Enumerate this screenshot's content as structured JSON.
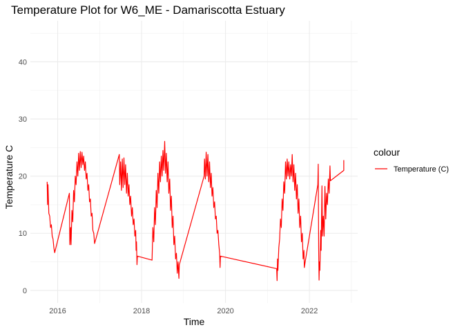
{
  "chart_data": {
    "type": "line",
    "title": "Temperature Plot for W6_ME - Damariscotta Estuary",
    "xlabel": "Time",
    "ylabel": "Temperature C",
    "xlim": [
      2015.35,
      2023.15
    ],
    "ylim": [
      -2.2,
      47.2
    ],
    "x_ticks": [
      2016,
      2018,
      2020,
      2022
    ],
    "x_tick_labels": [
      "2016",
      "2018",
      "2020",
      "2022"
    ],
    "y_ticks": [
      0,
      10,
      20,
      30,
      40
    ],
    "y_tick_labels": [
      "0",
      "10",
      "20",
      "30",
      "40"
    ],
    "grid": true,
    "legend": {
      "title": "colour",
      "position": "right",
      "entries": [
        {
          "label": "Temperature (C)",
          "color": "#ff0000"
        }
      ]
    },
    "series": [
      {
        "name": "Temperature (C)",
        "color": "#ff0000",
        "points": [
          [
            2015.75,
            19.0
          ],
          [
            2015.76,
            15.0
          ],
          [
            2015.77,
            18.5
          ],
          [
            2015.79,
            13.5
          ],
          [
            2015.81,
            13.0
          ],
          [
            2015.83,
            11.0
          ],
          [
            2015.85,
            11.5
          ],
          [
            2015.87,
            9.5
          ],
          [
            2015.89,
            9.0
          ],
          [
            2015.91,
            7.5
          ],
          [
            2015.93,
            6.6
          ],
          [
            2016.28,
            17.0
          ],
          [
            2016.29,
            8.0
          ],
          [
            2016.31,
            11.0
          ],
          [
            2016.32,
            8.0
          ],
          [
            2016.34,
            14.0
          ],
          [
            2016.36,
            12.0
          ],
          [
            2016.38,
            17.5
          ],
          [
            2016.4,
            15.5
          ],
          [
            2016.42,
            20.0
          ],
          [
            2016.44,
            18.5
          ],
          [
            2016.46,
            22.5
          ],
          [
            2016.48,
            20.0
          ],
          [
            2016.5,
            24.0
          ],
          [
            2016.52,
            21.0
          ],
          [
            2016.54,
            24.3
          ],
          [
            2016.56,
            21.5
          ],
          [
            2016.58,
            24.2
          ],
          [
            2016.6,
            22.0
          ],
          [
            2016.62,
            23.5
          ],
          [
            2016.64,
            21.0
          ],
          [
            2016.66,
            22.5
          ],
          [
            2016.68,
            19.5
          ],
          [
            2016.7,
            20.5
          ],
          [
            2016.72,
            17.5
          ],
          [
            2016.74,
            18.5
          ],
          [
            2016.76,
            15.5
          ],
          [
            2016.78,
            16.0
          ],
          [
            2016.8,
            13.0
          ],
          [
            2016.82,
            13.5
          ],
          [
            2016.84,
            10.5
          ],
          [
            2016.86,
            10.0
          ],
          [
            2016.88,
            8.2
          ],
          [
            2017.47,
            23.8
          ],
          [
            2017.48,
            18.5
          ],
          [
            2017.5,
            22.5
          ],
          [
            2017.52,
            17.5
          ],
          [
            2017.54,
            23.0
          ],
          [
            2017.56,
            18.0
          ],
          [
            2017.58,
            23.2
          ],
          [
            2017.6,
            18.5
          ],
          [
            2017.62,
            22.0
          ],
          [
            2017.64,
            17.0
          ],
          [
            2017.66,
            20.5
          ],
          [
            2017.68,
            16.5
          ],
          [
            2017.7,
            18.5
          ],
          [
            2017.72,
            15.0
          ],
          [
            2017.74,
            16.5
          ],
          [
            2017.76,
            13.0
          ],
          [
            2017.78,
            14.5
          ],
          [
            2017.8,
            11.5
          ],
          [
            2017.82,
            12.5
          ],
          [
            2017.84,
            9.5
          ],
          [
            2017.86,
            10.5
          ],
          [
            2017.87,
            7.0
          ],
          [
            2017.88,
            8.5
          ],
          [
            2017.89,
            4.5
          ],
          [
            2017.9,
            6.0
          ],
          [
            2018.25,
            5.3
          ],
          [
            2018.27,
            11.0
          ],
          [
            2018.29,
            8.5
          ],
          [
            2018.31,
            14.5
          ],
          [
            2018.33,
            11.5
          ],
          [
            2018.35,
            17.5
          ],
          [
            2018.37,
            14.5
          ],
          [
            2018.39,
            20.5
          ],
          [
            2018.41,
            17.0
          ],
          [
            2018.43,
            22.5
          ],
          [
            2018.45,
            19.0
          ],
          [
            2018.47,
            23.5
          ],
          [
            2018.49,
            20.0
          ],
          [
            2018.51,
            24.5
          ],
          [
            2018.53,
            21.0
          ],
          [
            2018.55,
            26.1
          ],
          [
            2018.57,
            20.5
          ],
          [
            2018.59,
            24.0
          ],
          [
            2018.61,
            19.0
          ],
          [
            2018.63,
            22.5
          ],
          [
            2018.65,
            17.0
          ],
          [
            2018.67,
            19.5
          ],
          [
            2018.69,
            14.0
          ],
          [
            2018.71,
            16.5
          ],
          [
            2018.73,
            11.0
          ],
          [
            2018.75,
            13.0
          ],
          [
            2018.77,
            8.0
          ],
          [
            2018.79,
            9.5
          ],
          [
            2018.81,
            5.5
          ],
          [
            2018.83,
            6.5
          ],
          [
            2018.85,
            3.0
          ],
          [
            2018.87,
            5.0
          ],
          [
            2018.89,
            2.1
          ],
          [
            2018.9,
            4.5
          ],
          [
            2019.49,
            20.0
          ],
          [
            2019.5,
            23.0
          ],
          [
            2019.52,
            19.5
          ],
          [
            2019.54,
            24.2
          ],
          [
            2019.56,
            20.0
          ],
          [
            2019.58,
            23.8
          ],
          [
            2019.6,
            19.0
          ],
          [
            2019.62,
            22.5
          ],
          [
            2019.64,
            18.0
          ],
          [
            2019.66,
            20.5
          ],
          [
            2019.68,
            16.5
          ],
          [
            2019.7,
            18.0
          ],
          [
            2019.72,
            14.5
          ],
          [
            2019.74,
            15.5
          ],
          [
            2019.76,
            12.5
          ],
          [
            2019.78,
            13.0
          ],
          [
            2019.8,
            10.0
          ],
          [
            2019.82,
            10.5
          ],
          [
            2019.84,
            8.0
          ],
          [
            2019.86,
            6.5
          ],
          [
            2019.87,
            4.0
          ],
          [
            2019.88,
            6.0
          ],
          [
            2021.22,
            3.8
          ],
          [
            2021.23,
            1.7
          ],
          [
            2021.24,
            5.5
          ],
          [
            2021.25,
            3.5
          ],
          [
            2021.27,
            7.5
          ],
          [
            2021.29,
            9.0
          ],
          [
            2021.31,
            12.5
          ],
          [
            2021.33,
            11.0
          ],
          [
            2021.35,
            16.0
          ],
          [
            2021.37,
            14.0
          ],
          [
            2021.39,
            19.0
          ],
          [
            2021.41,
            17.0
          ],
          [
            2021.43,
            22.5
          ],
          [
            2021.45,
            19.5
          ],
          [
            2021.47,
            23.0
          ],
          [
            2021.49,
            20.0
          ],
          [
            2021.51,
            22.5
          ],
          [
            2021.53,
            19.5
          ],
          [
            2021.55,
            22.0
          ],
          [
            2021.57,
            20.0
          ],
          [
            2021.59,
            23.8
          ],
          [
            2021.61,
            19.0
          ],
          [
            2021.63,
            22.0
          ],
          [
            2021.65,
            17.5
          ],
          [
            2021.67,
            20.5
          ],
          [
            2021.69,
            16.0
          ],
          [
            2021.71,
            18.5
          ],
          [
            2021.73,
            13.5
          ],
          [
            2021.75,
            16.0
          ],
          [
            2021.77,
            11.0
          ],
          [
            2021.79,
            13.0
          ],
          [
            2021.81,
            8.5
          ],
          [
            2021.83,
            10.0
          ],
          [
            2021.85,
            5.5
          ],
          [
            2021.87,
            7.0
          ],
          [
            2021.88,
            4.0
          ],
          [
            2021.9,
            5.0
          ],
          [
            2022.2,
            18.5
          ],
          [
            2022.21,
            22.1
          ],
          [
            2022.22,
            7.5
          ],
          [
            2022.23,
            1.8
          ],
          [
            2022.24,
            5.0
          ],
          [
            2022.25,
            3.5
          ],
          [
            2022.27,
            10.5
          ],
          [
            2022.28,
            7.0
          ],
          [
            2022.3,
            18.3
          ],
          [
            2022.31,
            9.5
          ],
          [
            2022.33,
            13.0
          ],
          [
            2022.35,
            9.5
          ],
          [
            2022.37,
            18.2
          ],
          [
            2022.39,
            12.5
          ],
          [
            2022.41,
            17.0
          ],
          [
            2022.43,
            15.0
          ],
          [
            2022.45,
            19.5
          ],
          [
            2022.47,
            17.0
          ],
          [
            2022.49,
            21.8
          ],
          [
            2022.5,
            19.2
          ],
          [
            2022.82,
            21.0
          ],
          [
            2022.82,
            22.8
          ]
        ]
      }
    ]
  }
}
